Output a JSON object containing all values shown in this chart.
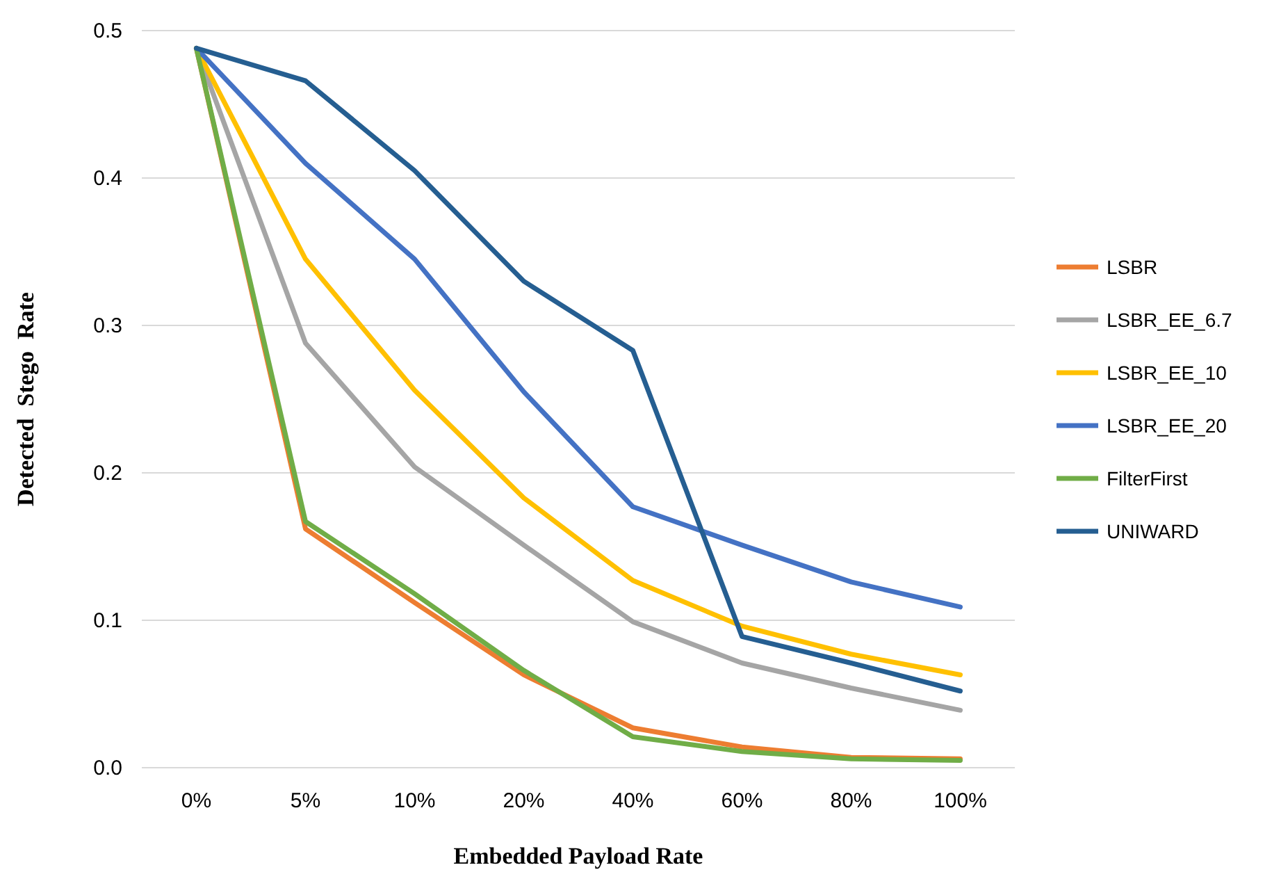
{
  "chart_data": {
    "type": "line",
    "xlabel": "Embedded Payload Rate",
    "ylabel": "Detected  Stego  Rate",
    "categories": [
      "0%",
      "5%",
      "10%",
      "20%",
      "40%",
      "60%",
      "80%",
      "100%"
    ],
    "ylim": [
      0,
      0.5
    ],
    "yticks": [
      {
        "value": 0,
        "label": "0.0"
      },
      {
        "value": 0.1,
        "label": "0.1"
      },
      {
        "value": 0.2,
        "label": "0.2"
      },
      {
        "value": 0.3,
        "label": "0.3"
      },
      {
        "value": 0.4,
        "label": "0.4"
      },
      {
        "value": 0.5,
        "label": "0.5"
      }
    ],
    "grid": "y",
    "legend": "right",
    "marker": "none",
    "line_style": "solid",
    "series": [
      {
        "name": "LSBR",
        "color": "#ed7d31",
        "values": [
          0.488,
          0.162,
          0.112,
          0.063,
          0.027,
          0.014,
          0.007,
          0.006
        ]
      },
      {
        "name": "LSBR_EE_6.7",
        "color": "#a5a5a5",
        "values": [
          0.488,
          0.288,
          0.204,
          0.151,
          0.099,
          0.071,
          0.054,
          0.039
        ]
      },
      {
        "name": "LSBR_EE_10",
        "color": "#ffc000",
        "values": [
          0.488,
          0.345,
          0.256,
          0.183,
          0.127,
          0.096,
          0.077,
          0.063
        ]
      },
      {
        "name": "LSBR_EE_20",
        "color": "#4472c4",
        "values": [
          0.488,
          0.41,
          0.345,
          0.255,
          0.177,
          0.151,
          0.126,
          0.109
        ]
      },
      {
        "name": "FilterFirst",
        "color": "#70ad47",
        "values": [
          0.488,
          0.167,
          0.118,
          0.066,
          0.021,
          0.011,
          0.006,
          0.005
        ]
      },
      {
        "name": "UNIWARD",
        "color": "#255e91",
        "values": [
          0.488,
          0.466,
          0.405,
          0.33,
          0.283,
          0.089,
          0.071,
          0.052
        ]
      }
    ]
  }
}
